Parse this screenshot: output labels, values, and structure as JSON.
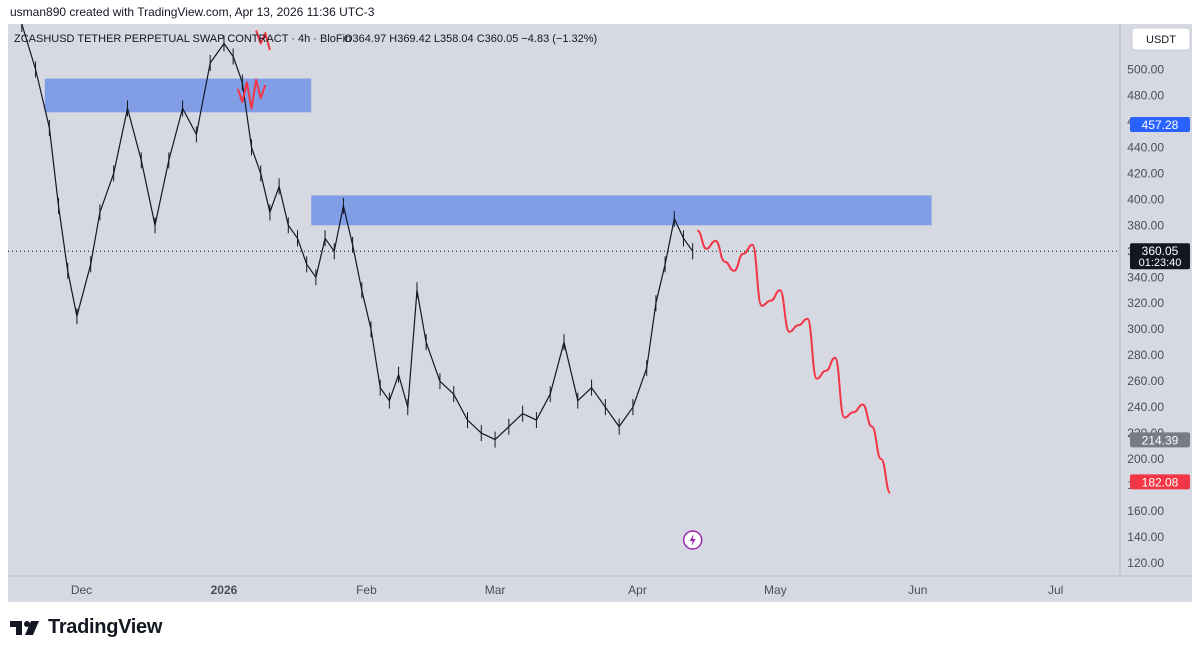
{
  "header": {
    "attribution": "usman890 created with TradingView.com, Apr 13, 2026 11:36 UTC-3"
  },
  "chart_data": {
    "type": "candlestick",
    "symbol_line": "ZCASHUSD TETHER PERPETUAL SWAP CONTRACT · 4h · BloFin",
    "ohlc_text": "O364.97 H369.42 L358.04 C360.05 −4.83 (−1.32%)",
    "currency": "USDT",
    "ylim": [
      110,
      535
    ],
    "y_ticks": [
      500,
      480,
      460,
      440,
      420,
      400,
      380,
      360,
      340,
      320,
      300,
      280,
      260,
      240,
      220,
      200,
      180,
      160,
      140,
      120
    ],
    "x_ticks": [
      {
        "label": "Dec",
        "date": "2025-12-01",
        "bold": false
      },
      {
        "label": "2026",
        "date": "2026-01-01",
        "bold": true
      },
      {
        "label": "Feb",
        "date": "2026-02-01",
        "bold": false
      },
      {
        "label": "Mar",
        "date": "2026-03-01",
        "bold": false
      },
      {
        "label": "Apr",
        "date": "2026-04-01",
        "bold": false
      },
      {
        "label": "May",
        "date": "2026-05-01",
        "bold": false
      },
      {
        "label": "Jun",
        "date": "2026-06-01",
        "bold": false
      },
      {
        "label": "Jul",
        "date": "2026-07-01",
        "bold": false
      }
    ],
    "price_series": {
      "x": [
        "2025-11-18",
        "2025-11-21",
        "2025-11-24",
        "2025-11-26",
        "2025-11-28",
        "2025-11-30",
        "2025-12-03",
        "2025-12-05",
        "2025-12-08",
        "2025-12-11",
        "2025-12-14",
        "2025-12-17",
        "2025-12-20",
        "2025-12-23",
        "2025-12-26",
        "2025-12-29",
        "2026-01-01",
        "2026-01-03",
        "2026-01-05",
        "2026-01-07",
        "2026-01-09",
        "2026-01-11",
        "2026-01-13",
        "2026-01-15",
        "2026-01-17",
        "2026-01-19",
        "2026-01-21",
        "2026-01-23",
        "2026-01-25",
        "2026-01-27",
        "2026-01-29",
        "2026-01-31",
        "2026-02-02",
        "2026-02-04",
        "2026-02-06",
        "2026-02-08",
        "2026-02-10",
        "2026-02-12",
        "2026-02-14",
        "2026-02-17",
        "2026-02-20",
        "2026-02-23",
        "2026-02-26",
        "2026-03-01",
        "2026-03-04",
        "2026-03-07",
        "2026-03-10",
        "2026-03-13",
        "2026-03-16",
        "2026-03-19",
        "2026-03-22",
        "2026-03-25",
        "2026-03-28",
        "2026-03-31",
        "2026-04-03",
        "2026-04-05",
        "2026-04-07",
        "2026-04-09",
        "2026-04-11",
        "2026-04-13"
      ],
      "y": [
        535,
        500,
        455,
        395,
        345,
        310,
        350,
        390,
        420,
        470,
        430,
        380,
        430,
        470,
        450,
        505,
        520,
        510,
        490,
        440,
        420,
        390,
        410,
        380,
        370,
        350,
        340,
        370,
        360,
        395,
        365,
        330,
        300,
        255,
        245,
        265,
        240,
        330,
        290,
        260,
        250,
        230,
        220,
        215,
        225,
        235,
        230,
        250,
        290,
        245,
        255,
        240,
        225,
        240,
        270,
        320,
        350,
        385,
        370,
        360
      ]
    },
    "zones": [
      {
        "date_start": "2025-11-23",
        "date_end": "2026-01-20",
        "price_low": 467,
        "price_high": 493
      },
      {
        "date_start": "2026-01-20",
        "date_end": "2026-06-04",
        "price_low": 380,
        "price_high": 403
      }
    ],
    "red_marks": [
      {
        "x": [
          "2026-01-04",
          "2026-01-05",
          "2026-01-06",
          "2026-01-07",
          "2026-01-08",
          "2026-01-09",
          "2026-01-10"
        ],
        "y": [
          485,
          475,
          490,
          470,
          492,
          478,
          488
        ]
      },
      {
        "x": [
          "2026-01-08",
          "2026-01-09",
          "2026-01-10",
          "2026-01-11"
        ],
        "y": [
          530,
          520,
          528,
          515
        ]
      }
    ],
    "projection": {
      "x": [
        "2026-04-14",
        "2026-04-16",
        "2026-04-18",
        "2026-04-20",
        "2026-04-22",
        "2026-04-24",
        "2026-04-26",
        "2026-04-28",
        "2026-04-30",
        "2026-05-02",
        "2026-05-04",
        "2026-05-06",
        "2026-05-08",
        "2026-05-10",
        "2026-05-12",
        "2026-05-14",
        "2026-05-16",
        "2026-05-18",
        "2026-05-20",
        "2026-05-22",
        "2026-05-24",
        "2026-05-26"
      ],
      "y": [
        376,
        362,
        368,
        352,
        345,
        358,
        365,
        318,
        322,
        330,
        298,
        303,
        308,
        262,
        268,
        278,
        232,
        236,
        242,
        225,
        200,
        174
      ]
    },
    "last_price": 360.05,
    "price_labels": [
      {
        "text": "457.28",
        "value": 457.28,
        "color": "#2962ff"
      },
      {
        "text": "360.05",
        "value": 360.05,
        "color": "#131722",
        "sub": "01:23:40"
      },
      {
        "text": "214.39",
        "value": 214.39,
        "color": "#787b86"
      },
      {
        "text": "182.08",
        "value": 182.08,
        "color": "#f23645"
      }
    ],
    "colors": {
      "background": "#d6d9e2",
      "price_line": "#131722",
      "zone": "#7292e6",
      "projection": "#f23645",
      "text": "#131722",
      "axis_text": "#4a4d57"
    }
  },
  "footer": {
    "logo_text": "TradingView"
  }
}
